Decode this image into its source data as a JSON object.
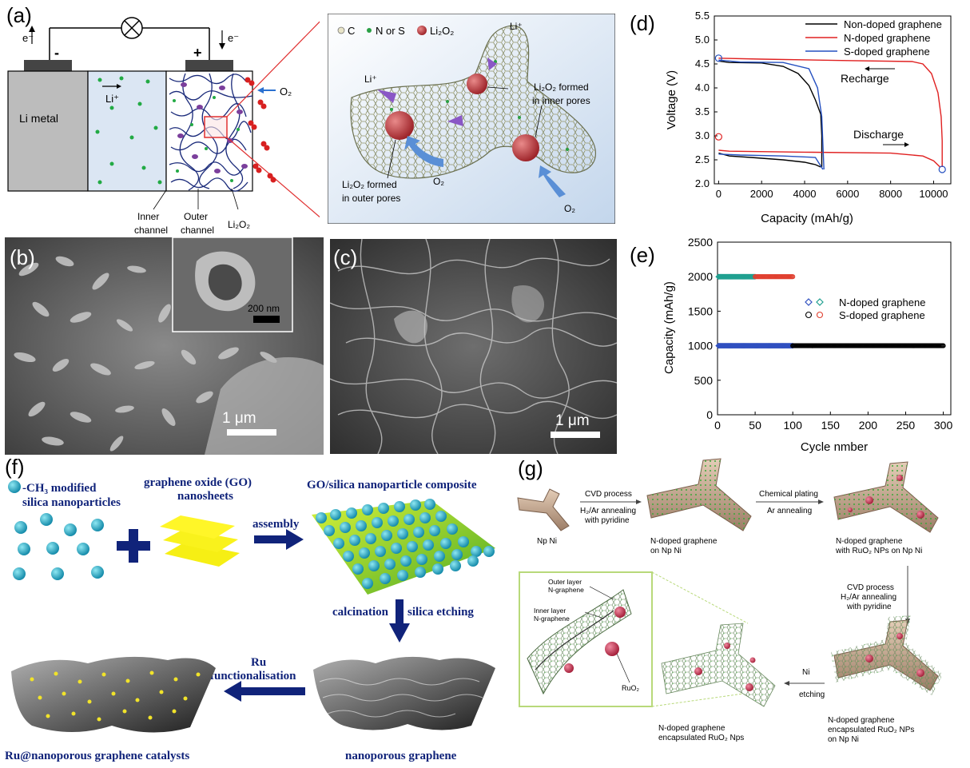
{
  "panels": {
    "a": {
      "letter": "(a)",
      "electron_left": "e⁻",
      "electron_right": "e⁻",
      "minus": "-",
      "plus": "+",
      "li_metal": "Li metal",
      "li_ion": "Li⁺",
      "o2": "O₂",
      "inner_channel_1": "Inner",
      "inner_channel_2": "channel",
      "outer_channel_1": "Outer",
      "outer_channel_2": "channel",
      "li2o2": "Li₂O₂",
      "legend_c": "C",
      "legend_ns": "N or S",
      "legend_li2o2": "Li₂O₂",
      "zoom_li_top": "Li⁺",
      "zoom_li_left": "Li⁺",
      "zoom_inner_1": "Li₂O₂ formed",
      "zoom_inner_2": "in inner pores",
      "zoom_outer_1": "Li₂O₂ formed",
      "zoom_outer_2": "in outer pores",
      "zoom_o2_a": "O₂",
      "zoom_o2_b": "O₂"
    },
    "b": {
      "letter": "(b)",
      "inset_scale": "200 nm",
      "scale": "1 μm"
    },
    "c": {
      "letter": "(c)",
      "scale": "1 μm"
    },
    "f": {
      "letter": "(f)",
      "silica_1": "-CH₃ modified",
      "silica_2": "silica nanoparticles",
      "go_1": "graphene oxide (GO)",
      "go_2": "nanosheets",
      "assembly": "assembly",
      "composite": "GO/silica nanoparticle composite",
      "calcination": "calcination",
      "etching": "silica etching",
      "ru_1": "Ru",
      "ru_2": "functionalisation",
      "catalyst": "Ru@nanoporous graphene catalysts",
      "nanoporous": "nanoporous graphene"
    },
    "g": {
      "letter": "(g)",
      "np_ni": "Np Ni",
      "cvd_1": "CVD process",
      "cvd_2": "H₂/Ar  annealing",
      "cvd_3": "with pyridine",
      "ndg_1": "N-doped graphene",
      "ndg_2": "on  Np Ni",
      "plating_1": "Chemical plating",
      "plating_2": "Ar annealing",
      "ru_1": "N-doped graphene",
      "ru_2": "with RuO₂ NPs  on  Np Ni",
      "cvd2_1": "CVD process",
      "cvd2_2": "H₂/Ar  annealing",
      "cvd2_3": "with pyridine",
      "ni_etch_1": "Ni",
      "ni_etch_2": "etching",
      "enc_ni_1": "N-doped graphene",
      "enc_ni_2": "encapsulated RuO₂ NPs",
      "enc_ni_3": "on  Np Ni",
      "enc_1": "N-doped graphene",
      "enc_2": "encapsulated RuO₂ Nps",
      "outer_layer_1": "Outer layer",
      "outer_layer_2": "N-graphene",
      "inner_layer_1": "Inner layer",
      "inner_layer_2": "N-graphene",
      "ruo2": "RuO₂"
    }
  },
  "chart_data": [
    {
      "panel": "(d)",
      "type": "line",
      "xlabel": "Capacity (mAh/g)",
      "ylabel": "Voltage (V)",
      "xlim": [
        -200,
        10800
      ],
      "ylim": [
        2.0,
        5.5
      ],
      "xticks": [
        0,
        2000,
        4000,
        6000,
        8000,
        10000
      ],
      "yticks": [
        2.0,
        2.5,
        3.0,
        3.5,
        4.0,
        4.5,
        5.0,
        5.5
      ],
      "legend_position": "top-right",
      "annotations": [
        "Recharge",
        "Discharge"
      ],
      "series": [
        {
          "name": "Non-doped graphene",
          "color": "#000000",
          "discharge": [
            [
              0,
              2.64
            ],
            [
              500,
              2.58
            ],
            [
              1500,
              2.55
            ],
            [
              3000,
              2.5
            ],
            [
              4000,
              2.45
            ],
            [
              4500,
              2.4
            ],
            [
              4750,
              2.35
            ]
          ],
          "charge": [
            [
              0,
              4.56
            ],
            [
              500,
              4.53
            ],
            [
              2000,
              4.52
            ],
            [
              3000,
              4.45
            ],
            [
              3700,
              4.3
            ],
            [
              4200,
              4.05
            ],
            [
              4500,
              3.75
            ],
            [
              4750,
              3.45
            ],
            [
              4800,
              3.0
            ],
            [
              4800,
              2.35
            ]
          ]
        },
        {
          "name": "N-doped graphene",
          "color": "#e02020",
          "discharge": [
            [
              0,
              2.7
            ],
            [
              500,
              2.68
            ],
            [
              4000,
              2.66
            ],
            [
              8000,
              2.64
            ],
            [
              9500,
              2.58
            ],
            [
              10000,
              2.48
            ],
            [
              10300,
              2.35
            ]
          ],
          "charge": [
            [
              0,
              4.62
            ],
            [
              2000,
              4.6
            ],
            [
              6000,
              4.57
            ],
            [
              9000,
              4.55
            ],
            [
              9500,
              4.5
            ],
            [
              9900,
              4.3
            ],
            [
              10200,
              3.9
            ],
            [
              10350,
              3.4
            ],
            [
              10400,
              2.9
            ],
            [
              10400,
              2.35
            ]
          ]
        },
        {
          "name": "S-doped graphene",
          "color": "#2550c0",
          "discharge": [
            [
              0,
              2.62
            ],
            [
              1000,
              2.6
            ],
            [
              3000,
              2.58
            ],
            [
              4500,
              2.55
            ],
            [
              4850,
              2.3
            ]
          ],
          "charge": [
            [
              0,
              4.58
            ],
            [
              1000,
              4.54
            ],
            [
              3000,
              4.53
            ],
            [
              4200,
              4.4
            ],
            [
              4600,
              4.0
            ],
            [
              4800,
              3.4
            ],
            [
              4900,
              2.3
            ]
          ]
        }
      ]
    },
    {
      "panel": "(e)",
      "type": "scatter",
      "xlabel": "Cycle nmber",
      "ylabel": "Capacity (mAh/g)",
      "xlim": [
        0,
        310
      ],
      "ylim": [
        0,
        2500
      ],
      "xticks": [
        0,
        50,
        100,
        150,
        200,
        250,
        300
      ],
      "yticks": [
        0,
        500,
        1000,
        1500,
        2000,
        2500
      ],
      "legend_position": "center-right",
      "series": [
        {
          "name": "N-doped graphene",
          "marker": "diamond",
          "groups": [
            {
              "color": "#3050c0",
              "x_from": 1,
              "x_to": 100,
              "y": 1000
            },
            {
              "color": "#20a090",
              "x_from": 1,
              "x_to": 50,
              "y": 2000
            }
          ]
        },
        {
          "name": "S-doped graphene",
          "marker": "circle",
          "groups": [
            {
              "color": "#000000",
              "x_from": 100,
              "x_to": 300,
              "y": 1000
            },
            {
              "color": "#e04030",
              "x_from": 50,
              "x_to": 100,
              "y": 2000
            }
          ]
        }
      ]
    }
  ]
}
